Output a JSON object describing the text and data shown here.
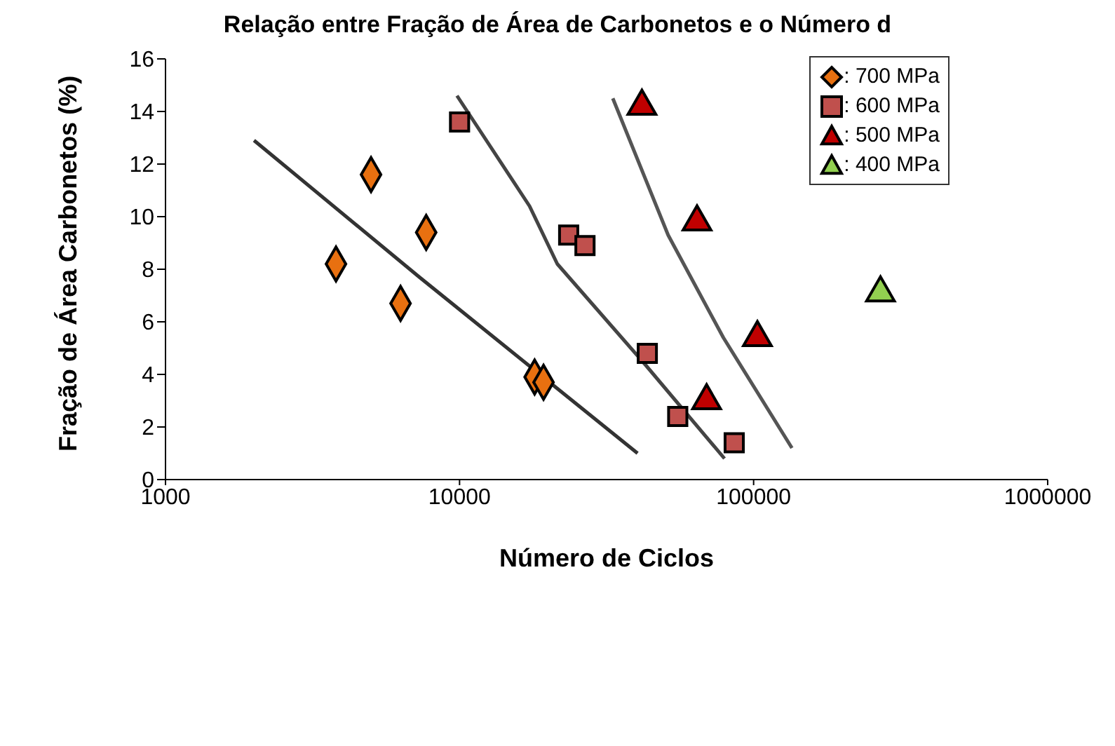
{
  "chart_data": {
    "type": "scatter",
    "title": "Relação entre Fração de Área de Carbonetos e o Número d",
    "xlabel": "Número de Ciclos",
    "ylabel": "Fração de Área Carbonetos (%)",
    "log": "x",
    "xlim": [
      1000,
      1000000
    ],
    "xticks": [
      1000,
      10000,
      100000,
      1000000
    ],
    "ylim": [
      0,
      16
    ],
    "yticks": [
      0,
      2,
      4,
      6,
      8,
      10,
      12,
      14,
      16
    ],
    "grid": false,
    "legend": "top right",
    "series": [
      {
        "name": ": 700 MPa",
        "color": "#e87010",
        "marker": "diamond",
        "x": [
          3800,
          5000,
          7700,
          6300,
          18000,
          19300
        ],
        "values": [
          8.2,
          11.6,
          9.4,
          6.7,
          3.9,
          3.7
        ]
      },
      {
        "name": ": 600 MPa",
        "color": "#c0504d",
        "marker": "square",
        "x": [
          10000,
          23500,
          26700,
          43500,
          55200,
          85900
        ],
        "values": [
          13.6,
          9.3,
          8.9,
          4.8,
          2.4,
          1.4
        ]
      },
      {
        "name": ": 500 MPa",
        "color": "#c00000",
        "marker": "triangle",
        "x": [
          41700,
          64200,
          103000,
          69200
        ],
        "values": [
          14.2,
          9.8,
          5.4,
          3.0
        ]
      },
      {
        "name": ": 400 MPa",
        "color": "#92d050",
        "marker": "triangle",
        "x": [
          270000
        ],
        "values": [
          7.1
        ]
      },
      {
        "type": "line",
        "color": "#333333",
        "marker": "none",
        "x": [
          2000,
          7300,
          40300
        ],
        "values": [
          12.9,
          7.7,
          1.0
        ]
      },
      {
        "type": "line",
        "color": "#444444",
        "marker": "none",
        "x": [
          9800,
          17300,
          21500,
          42600,
          79600
        ],
        "values": [
          14.6,
          10.4,
          8.2,
          4.4,
          0.8
        ]
      },
      {
        "type": "line",
        "color": "#555555",
        "marker": "none",
        "x": [
          33200,
          51200,
          78900,
          135000
        ],
        "values": [
          14.5,
          9.3,
          5.4,
          1.2
        ]
      }
    ]
  }
}
